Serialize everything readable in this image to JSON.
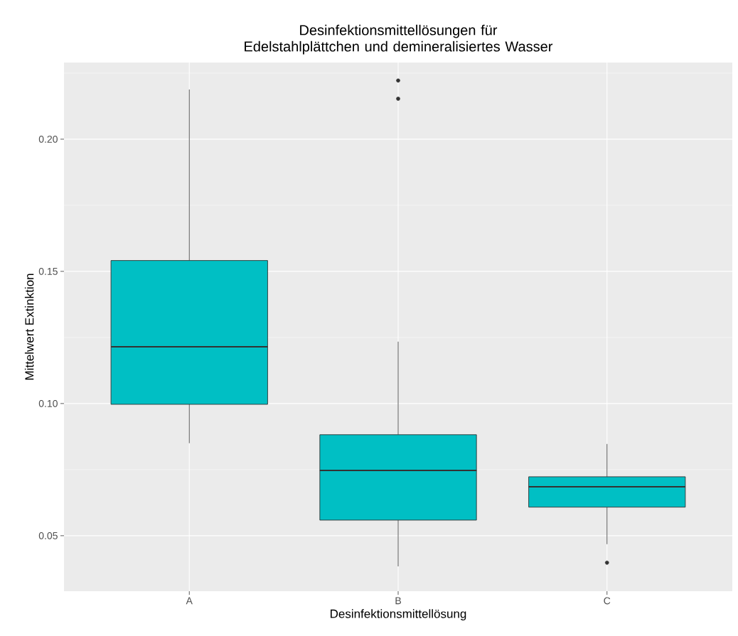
{
  "chart_data": {
    "type": "box",
    "title": "Desinfektionsmittellösungen für Edelstahlplättchen und demineralisiertes Wasser",
    "xlabel": "Desinfektionsmittellösung",
    "ylabel": "Mittelwert Extinktion",
    "categories": [
      "A",
      "B",
      "C"
    ],
    "color": "#00bfc4",
    "grid": true,
    "boxes": [
      {
        "low": 0.085,
        "q1": 0.0997,
        "median": 0.1215,
        "q3": 0.1541,
        "high": 0.2188
      },
      {
        "low": 0.0384,
        "q1": 0.0559,
        "median": 0.0747,
        "q3": 0.0882,
        "high": 0.1234,
        "outliers": [
          0.2153,
          0.2222
        ]
      },
      {
        "low": 0.0468,
        "q1": 0.0608,
        "median": 0.0685,
        "q3": 0.0723,
        "high": 0.0847,
        "outliers": [
          0.0398
        ]
      }
    ],
    "ylim": [
      0.029,
      0.229
    ],
    "yticks": [
      {
        "value": 0.05,
        "label": "0.05"
      },
      {
        "value": 0.1,
        "label": "0.10"
      },
      {
        "value": 0.15,
        "label": "0.15"
      },
      {
        "value": 0.2,
        "label": "0.20"
      }
    ]
  }
}
